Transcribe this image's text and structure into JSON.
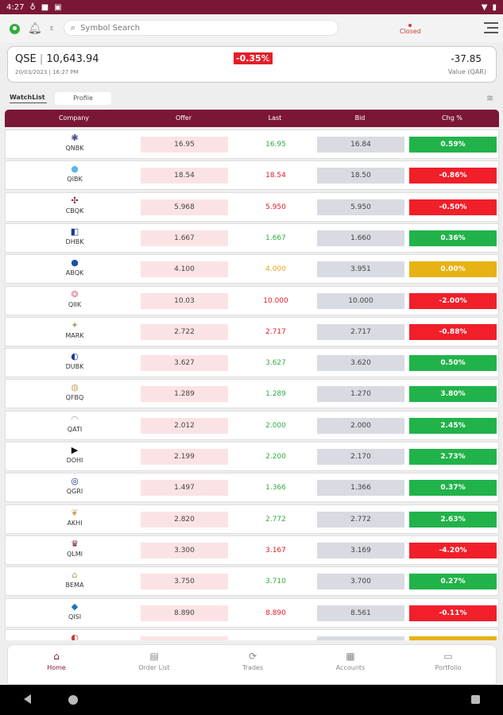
{
  "status_bar": {
    "time": "4:27",
    "icons": [
      "status-a-icon",
      "status-b-icon",
      "status-c-icon"
    ],
    "right_icons": [
      "wifi-icon",
      "battery-icon"
    ]
  },
  "top_bar": {
    "search_placeholder": "Symbol Search",
    "market_status": "Closed",
    "market_status_color": "#d23a3a"
  },
  "index": {
    "name": "QSE",
    "value": "10,643.94",
    "change_pct": "-0.35%",
    "date": "20/03/2023",
    "time": "16:27 PM",
    "change_value": "-37.85",
    "change_label": "Value (QAR)",
    "change_color": "#e51d2a"
  },
  "tabs": {
    "watchlist": "WatchList",
    "profile": "Profile"
  },
  "table": {
    "headers": {
      "company": "Company",
      "offer": "Offer",
      "last": "Last",
      "bid": "Bid",
      "chg": "Chg %"
    },
    "rows": [
      {
        "symbol": "QNBK",
        "icon": "qnb-logo-icon",
        "glyph": "❃",
        "glyph_color": "#1b2a7a",
        "offer": "16.95",
        "last": "16.95",
        "last_color": "#2fae3f",
        "bid": "16.84",
        "chg": "0.59%",
        "chg_color": "#21b34a"
      },
      {
        "symbol": "QIBK",
        "icon": "qib-logo-icon",
        "glyph": "●",
        "glyph_color": "#5ab6e8",
        "offer": "18.54",
        "last": "18.54",
        "last_color": "#e51d2a",
        "bid": "18.50",
        "chg": "-0.86%",
        "chg_color": "#f01f2a"
      },
      {
        "symbol": "CBQK",
        "icon": "cbq-logo-icon",
        "glyph": "✣",
        "glyph_color": "#7b1736",
        "offer": "5.968",
        "last": "5.950",
        "last_color": "#e51d2a",
        "bid": "5.950",
        "chg": "-0.50%",
        "chg_color": "#f01f2a"
      },
      {
        "symbol": "DHBK",
        "icon": "doha-bank-logo-icon",
        "glyph": "◧",
        "glyph_color": "#1b3c8f",
        "offer": "1.667",
        "last": "1.667",
        "last_color": "#2fae3f",
        "bid": "1.660",
        "chg": "0.36%",
        "chg_color": "#21b34a"
      },
      {
        "symbol": "ABQK",
        "icon": "ahli-bank-logo-icon",
        "glyph": "●",
        "glyph_color": "#1f4fa3",
        "offer": "4.100",
        "last": "4.000",
        "last_color": "#e5a21d",
        "bid": "3.951",
        "chg": "0.00%",
        "chg_color": "#e7b213"
      },
      {
        "symbol": "QIIK",
        "icon": "qiib-logo-icon",
        "glyph": "❂",
        "glyph_color": "#d77a8a",
        "offer": "10.03",
        "last": "10.000",
        "last_color": "#e51d2a",
        "bid": "10.000",
        "chg": "-2.00%",
        "chg_color": "#f01f2a"
      },
      {
        "symbol": "MARK",
        "icon": "masraf-logo-icon",
        "glyph": "✦",
        "glyph_color": "#b59a6a",
        "offer": "2.722",
        "last": "2.717",
        "last_color": "#e51d2a",
        "bid": "2.717",
        "chg": "-0.88%",
        "chg_color": "#f01f2a"
      },
      {
        "symbol": "DUBK",
        "icon": "dukhan-logo-icon",
        "glyph": "◐",
        "glyph_color": "#1f3aa3",
        "offer": "3.627",
        "last": "3.627",
        "last_color": "#2fae3f",
        "bid": "3.620",
        "chg": "0.50%",
        "chg_color": "#21b34a"
      },
      {
        "symbol": "QFBQ",
        "icon": "qfb-logo-icon",
        "glyph": "◍",
        "glyph_color": "#c7a66b",
        "offer": "1.289",
        "last": "1.289",
        "last_color": "#2fae3f",
        "bid": "1.270",
        "chg": "3.80%",
        "chg_color": "#21b34a"
      },
      {
        "symbol": "QATI",
        "icon": "qic-logo-icon",
        "glyph": "◠",
        "glyph_color": "#999999",
        "offer": "2.012",
        "last": "2.000",
        "last_color": "#2fae3f",
        "bid": "2.000",
        "chg": "2.45%",
        "chg_color": "#21b34a"
      },
      {
        "symbol": "DOHI",
        "icon": "doha-insurance-logo-icon",
        "glyph": "▶",
        "glyph_color": "#111111",
        "offer": "2.199",
        "last": "2.200",
        "last_color": "#2fae3f",
        "bid": "2.170",
        "chg": "2.73%",
        "chg_color": "#21b34a"
      },
      {
        "symbol": "QGRI",
        "icon": "qgri-logo-icon",
        "glyph": "◎",
        "glyph_color": "#1b2a7a",
        "offer": "1.497",
        "last": "1.366",
        "last_color": "#2fae3f",
        "bid": "1.366",
        "chg": "0.37%",
        "chg_color": "#21b34a"
      },
      {
        "symbol": "AKHI",
        "icon": "alkhaleej-logo-icon",
        "glyph": "❦",
        "glyph_color": "#c7a66b",
        "offer": "2.820",
        "last": "2.772",
        "last_color": "#2fae3f",
        "bid": "2.772",
        "chg": "2.63%",
        "chg_color": "#21b34a"
      },
      {
        "symbol": "QLMI",
        "icon": "qlm-logo-icon",
        "glyph": "♛",
        "glyph_color": "#6a1b3a",
        "offer": "3.300",
        "last": "3.167",
        "last_color": "#e51d2a",
        "bid": "3.169",
        "chg": "-4.20%",
        "chg_color": "#f01f2a"
      },
      {
        "symbol": "BEMA",
        "icon": "beema-logo-icon",
        "glyph": "⌂",
        "glyph_color": "#b59a6a",
        "offer": "3.750",
        "last": "3.710",
        "last_color": "#2fae3f",
        "bid": "3.700",
        "chg": "0.27%",
        "chg_color": "#21b34a"
      },
      {
        "symbol": "QISI",
        "icon": "qisi-logo-icon",
        "glyph": "◆",
        "glyph_color": "#1f6fc4",
        "offer": "8.890",
        "last": "8.890",
        "last_color": "#e51d2a",
        "bid": "8.561",
        "chg": "-0.11%",
        "chg_color": "#f01f2a"
      },
      {
        "symbol": "",
        "icon": "partial-row-logo-icon",
        "glyph": "◐",
        "glyph_color": "#d23a3a",
        "offer": "",
        "last": "",
        "last_color": "#2fae3f",
        "bid": "",
        "chg": "",
        "chg_color": "#e7b213"
      }
    ]
  },
  "bottom_nav": {
    "items": [
      {
        "label": "Home",
        "icon": "home-icon",
        "glyph": "⌂",
        "active": true
      },
      {
        "label": "Order List",
        "icon": "order-list-icon",
        "glyph": "▤",
        "active": false
      },
      {
        "label": "Trades",
        "icon": "trades-icon",
        "glyph": "⟳",
        "active": false
      },
      {
        "label": "Accounts",
        "icon": "accounts-icon",
        "glyph": "▦",
        "active": false
      },
      {
        "label": "Portfolio",
        "icon": "portfolio-icon",
        "glyph": "▭",
        "active": false
      }
    ]
  }
}
